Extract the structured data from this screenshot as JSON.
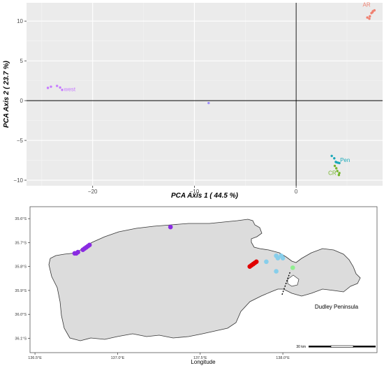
{
  "chart_data": [
    {
      "type": "scatter",
      "xlabel": "PCA Axis 1 ( 44.5 %)",
      "ylabel": "PCA Axis 2 ( 23.7 %)",
      "xlim": [
        -26.5,
        8.5
      ],
      "ylim": [
        -10.7,
        12.3
      ],
      "x_ticks": [
        -20,
        -10,
        0
      ],
      "y_ticks": [
        -10,
        -5,
        0,
        5,
        10
      ],
      "x_tick_labels": [
        "−20",
        "−10",
        "0"
      ],
      "y_tick_labels": [
        "−10",
        "−5",
        "0",
        "5",
        "10"
      ],
      "grid": true,
      "reference_lines": [
        {
          "axis": "x",
          "value": 0
        },
        {
          "axis": "y",
          "value": 0
        }
      ],
      "series": [
        {
          "label": "AR",
          "color": "#f08070",
          "x": [
            7.4,
            7.55,
            7.7,
            7.5,
            7.25,
            7.0,
            7.2
          ],
          "y": [
            11.0,
            11.25,
            11.35,
            11.1,
            10.6,
            10.45,
            10.3
          ]
        },
        {
          "label": "west",
          "color": "#c77cff",
          "x": [
            -24.4,
            -24.1,
            -23.5,
            -23.2,
            -23.0
          ],
          "y": [
            1.6,
            1.75,
            1.85,
            1.65,
            1.35
          ]
        },
        {
          "label": "",
          "color": "#9b8cff",
          "x": [
            -8.6
          ],
          "y": [
            -0.3
          ]
        },
        {
          "label": "Pen",
          "color": "#1aa8b8",
          "x": [
            3.5,
            3.75,
            3.95,
            4.1,
            4.25,
            3.9
          ],
          "y": [
            -6.95,
            -7.25,
            -7.75,
            -7.8,
            -7.85,
            -7.7
          ]
        },
        {
          "label": "CR",
          "color": "#74b42a",
          "x": [
            3.8,
            3.95,
            4.05,
            4.25,
            4.2
          ],
          "y": [
            -8.2,
            -8.5,
            -8.85,
            -9.1,
            -9.35
          ]
        }
      ]
    },
    {
      "type": "scatter",
      "xlabel": "Longitude",
      "lon_range": [
        136.47,
        138.57
      ],
      "lat_range": [
        -36.16,
        -35.55
      ],
      "x_ticks": [
        136.5,
        137.0,
        137.5,
        138.0
      ],
      "x_tick_labels": [
        "136.5°E",
        "137.0°E",
        "137.5°E",
        "138.0°E"
      ],
      "y_ticks": [
        -35.6,
        -35.7,
        -35.8,
        -35.9,
        -36.0,
        -36.1
      ],
      "y_tick_labels": [
        "35.6°S",
        "35.7°S",
        "35.8°S",
        "35.9°S",
        "36.0°S",
        "36.1°S"
      ],
      "annotations": [
        "Dudley Peninsula"
      ],
      "scale_bar_label": "30 km",
      "series": [
        {
          "color": "#8a2be2",
          "lon": [
            137.32
          ],
          "lat": [
            -35.635
          ]
        },
        {
          "color": "#8a2be2",
          "lon": [
            136.74,
            136.75,
            136.76,
            136.79,
            136.8,
            136.81,
            136.82,
            136.83
          ],
          "lat": [
            -35.745,
            -35.745,
            -35.74,
            -35.73,
            -35.725,
            -35.72,
            -35.715,
            -35.71
          ]
        },
        {
          "color": "#e00000",
          "lon": [
            137.8,
            137.81,
            137.82,
            137.83,
            137.84
          ],
          "lat": [
            -35.8,
            -35.795,
            -35.79,
            -35.785,
            -35.78
          ]
        },
        {
          "color": "#87ceeb",
          "lon": [
            137.9,
            137.96,
            137.97,
            137.99,
            138.0,
            137.96
          ],
          "lat": [
            -35.78,
            -35.755,
            -35.765,
            -35.755,
            -35.765,
            -35.82
          ]
        },
        {
          "color": "#90ee90",
          "lon": [
            138.06
          ],
          "lat": [
            -35.805
          ]
        }
      ]
    }
  ]
}
